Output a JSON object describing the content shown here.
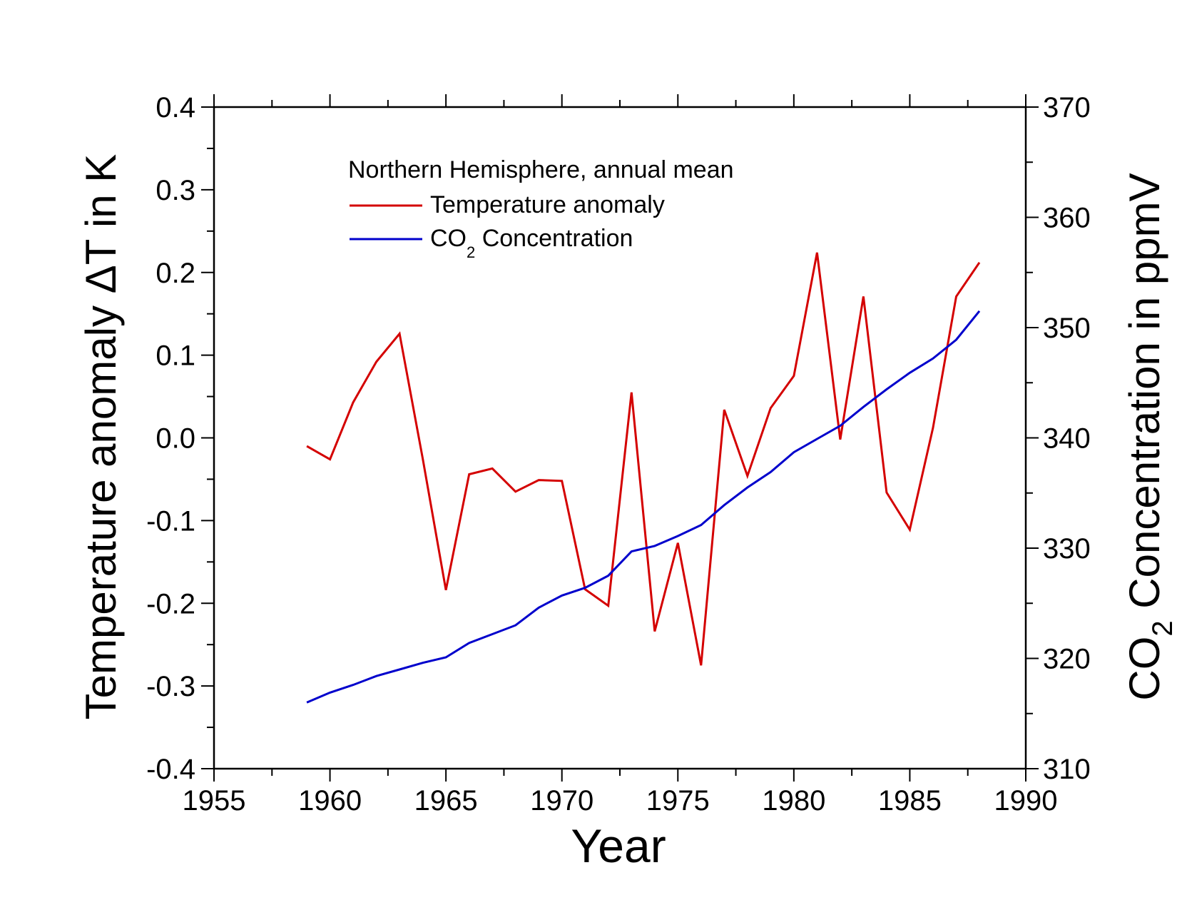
{
  "chart_data": {
    "type": "line",
    "title": "",
    "xlabel": "Year",
    "ylabel": "Temperature anomaly ΔT in K",
    "y2label": {
      "prefix": "CO",
      "sub": "2",
      "suffix": " Concentration in ppmV"
    },
    "xlim": [
      1955,
      1990
    ],
    "ylim": [
      -0.4,
      0.4
    ],
    "y2lim": [
      310,
      370
    ],
    "x_ticks": [
      1955,
      1960,
      1965,
      1970,
      1975,
      1980,
      1985,
      1990
    ],
    "x_tick_labels": [
      "1955",
      "1960",
      "1965",
      "1970",
      "1975",
      "1980",
      "1985",
      "1990"
    ],
    "y_ticks": [
      0.4,
      0.3,
      0.2,
      0.1,
      0.0,
      -0.1,
      -0.2,
      -0.3,
      -0.4
    ],
    "y_tick_labels": [
      "0.4",
      "0.3",
      "0.2",
      "0.1",
      "0.0",
      "-0.1",
      "-0.2",
      "-0.3",
      "-0.4"
    ],
    "y2_ticks": [
      370,
      360,
      350,
      340,
      330,
      320,
      310
    ],
    "y2_tick_labels": [
      "370",
      "360",
      "350",
      "340",
      "330",
      "320",
      "310"
    ],
    "legend": {
      "title": "Northern Hemisphere, annual mean",
      "placement": "top-left",
      "entries": [
        {
          "series": "temperature",
          "label": "Temperature anomaly"
        },
        {
          "series": "co2",
          "prefix": "CO",
          "sub": "2",
          "suffix": " Concentration"
        }
      ]
    },
    "series": [
      {
        "name": "Temperature anomaly",
        "id": "temperature",
        "axis": "left",
        "color": "#d40000",
        "x": [
          1959,
          1960,
          1961,
          1962,
          1963,
          1964,
          1965,
          1966,
          1967,
          1968,
          1969,
          1970,
          1971,
          1972,
          1973,
          1974,
          1975,
          1976,
          1977,
          1978,
          1979,
          1980,
          1981,
          1982,
          1983,
          1984,
          1985,
          1986,
          1987,
          1988
        ],
        "values": [
          -0.01,
          -0.026,
          0.043,
          0.092,
          0.126,
          -0.025,
          -0.184,
          -0.044,
          -0.037,
          -0.065,
          -0.051,
          -0.052,
          -0.183,
          -0.203,
          0.055,
          -0.234,
          -0.127,
          -0.275,
          0.034,
          -0.046,
          0.036,
          0.075,
          0.224,
          -0.002,
          0.171,
          -0.066,
          -0.111,
          0.012,
          0.171,
          0.212
        ]
      },
      {
        "name": "CO2 Concentration",
        "id": "co2",
        "axis": "right",
        "color": "#0000cc",
        "x": [
          1959,
          1960,
          1961,
          1962,
          1963,
          1964,
          1965,
          1966,
          1967,
          1968,
          1969,
          1970,
          1971,
          1972,
          1973,
          1974,
          1975,
          1976,
          1977,
          1978,
          1979,
          1980,
          1981,
          1982,
          1983,
          1984,
          1985,
          1986,
          1987,
          1988
        ],
        "values": [
          316.0,
          316.9,
          317.6,
          318.4,
          319.0,
          319.6,
          320.1,
          321.4,
          322.2,
          323.0,
          324.6,
          325.7,
          326.4,
          327.5,
          329.7,
          330.2,
          331.1,
          332.1,
          333.9,
          335.5,
          336.9,
          338.7,
          339.9,
          341.1,
          342.8,
          344.4,
          345.9,
          347.2,
          348.9,
          351.5
        ]
      }
    ]
  }
}
